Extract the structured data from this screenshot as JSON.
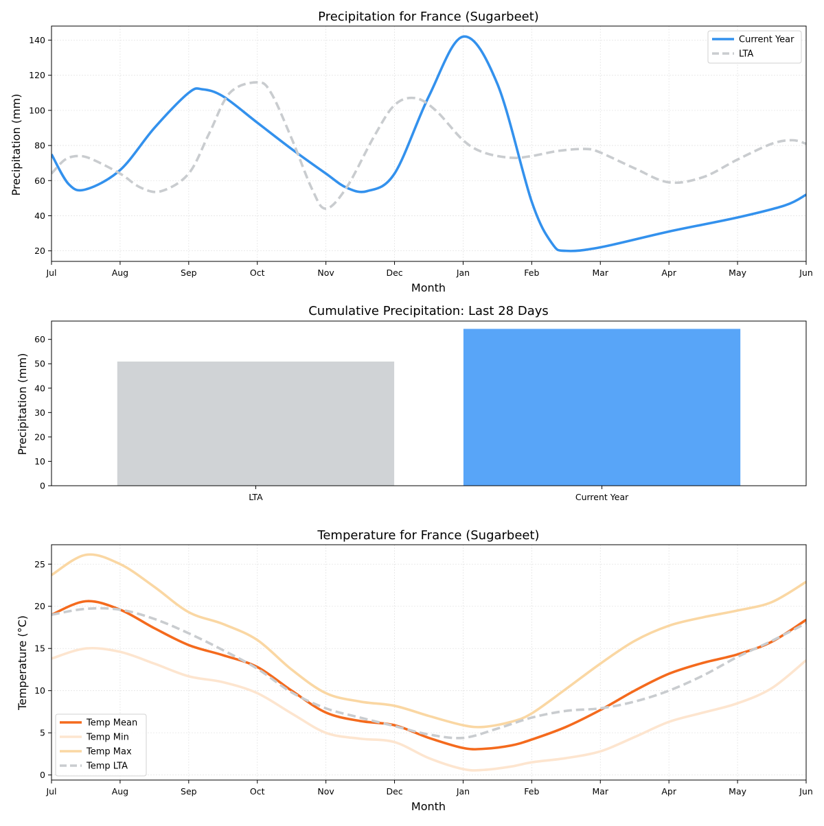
{
  "chart_data": [
    {
      "type": "line",
      "title": "Precipitation for France (Sugarbeet)",
      "xlabel": "Month",
      "ylabel": "Precipitation (mm)",
      "x_ticks": [
        "Jul",
        "Aug",
        "Sep",
        "Oct",
        "Nov",
        "Dec",
        "Jan",
        "Feb",
        "Mar",
        "Apr",
        "May",
        "Jun"
      ],
      "y_ticks": [
        20,
        40,
        60,
        80,
        100,
        120,
        140
      ],
      "ylim": [
        14,
        148
      ],
      "grid": true,
      "legend_position": "top-right",
      "series": [
        {
          "name": "Current Year",
          "color": "#3391ed",
          "style": "solid",
          "x": [
            0,
            0.25,
            0.5,
            1.0,
            1.5,
            2.0,
            2.2,
            2.5,
            3.0,
            3.5,
            4.0,
            4.3,
            4.6,
            5.0,
            5.5,
            6.0,
            6.5,
            7.0,
            7.3,
            7.5,
            8.0,
            9.0,
            10.0,
            10.7,
            11.0
          ],
          "values": [
            75,
            58,
            55,
            66,
            90,
            110,
            112,
            108,
            93,
            78,
            64,
            56,
            54,
            64,
            108,
            142,
            115,
            48,
            24,
            20,
            22,
            31,
            39,
            46,
            52
          ]
        },
        {
          "name": "LTA",
          "color": "#c9cccf",
          "style": "dashed",
          "x": [
            0,
            0.2,
            0.4,
            0.6,
            1.0,
            1.3,
            1.6,
            2.0,
            2.3,
            2.6,
            3.0,
            3.2,
            3.5,
            3.8,
            4.0,
            4.3,
            4.7,
            5.0,
            5.3,
            5.6,
            6.0,
            6.3,
            6.7,
            7.0,
            7.4,
            7.8,
            8.0,
            8.5,
            9.0,
            9.5,
            10.0,
            10.5,
            10.8,
            11.0
          ],
          "values": [
            64,
            72,
            74,
            72,
            64,
            56,
            54,
            64,
            87,
            110,
            116,
            110,
            84,
            55,
            44,
            56,
            85,
            103,
            107,
            100,
            83,
            76,
            73,
            74,
            77,
            78,
            76,
            67,
            59,
            62,
            72,
            81,
            83,
            81
          ]
        }
      ]
    },
    {
      "type": "bar",
      "title": "Cumulative Precipitation: Last 28 Days",
      "ylabel": "Precipitation (mm)",
      "categories": [
        "LTA",
        "Current Year"
      ],
      "values": [
        50.9,
        64.3
      ],
      "colors": [
        "#d0d3d6",
        "#58a5f8"
      ],
      "y_ticks": [
        0,
        10,
        20,
        30,
        40,
        50,
        60
      ],
      "ylim": [
        0,
        67.5
      ]
    },
    {
      "type": "line",
      "title": "Temperature for France (Sugarbeet)",
      "xlabel": "Month",
      "ylabel": "Temperature (°C)",
      "x_ticks": [
        "Jul",
        "Aug",
        "Sep",
        "Oct",
        "Nov",
        "Dec",
        "Jan",
        "Feb",
        "Mar",
        "Apr",
        "May",
        "Jun"
      ],
      "y_ticks": [
        0,
        5,
        10,
        15,
        20,
        25
      ],
      "ylim": [
        -0.6,
        27.3
      ],
      "grid": true,
      "legend_position": "bottom-left",
      "series": [
        {
          "name": "Temp Mean",
          "color": "#f46a1d",
          "style": "solid",
          "x": [
            0,
            0.5,
            1.0,
            1.5,
            2.0,
            2.5,
            3.0,
            3.5,
            4.0,
            4.5,
            5.0,
            5.5,
            6.0,
            6.3,
            6.7,
            7.0,
            7.5,
            8.0,
            8.5,
            9.0,
            9.5,
            10.0,
            10.5,
            11.0
          ],
          "values": [
            19,
            20.6,
            19.6,
            17.4,
            15.4,
            14.2,
            12.8,
            10.0,
            7.4,
            6.4,
            5.9,
            4.4,
            3.2,
            3.1,
            3.5,
            4.2,
            5.7,
            7.7,
            10.0,
            12.0,
            13.3,
            14.3,
            15.8,
            18.4
          ]
        },
        {
          "name": "Temp Min",
          "color": "#fde5cf",
          "style": "solid",
          "x": [
            0,
            0.5,
            1.0,
            1.5,
            2.0,
            2.5,
            3.0,
            3.5,
            4.0,
            4.5,
            5.0,
            5.5,
            6.0,
            6.3,
            6.7,
            7.0,
            7.5,
            8.0,
            8.5,
            9.0,
            9.5,
            10.0,
            10.5,
            11.0
          ],
          "values": [
            13.8,
            15.0,
            14.6,
            13.2,
            11.7,
            11.0,
            9.7,
            7.3,
            5.0,
            4.3,
            3.9,
            2.0,
            0.7,
            0.6,
            1.0,
            1.5,
            2.0,
            2.8,
            4.5,
            6.3,
            7.4,
            8.5,
            10.3,
            13.6
          ]
        },
        {
          "name": "Temp Max",
          "color": "#fad7a3",
          "style": "solid",
          "x": [
            0,
            0.5,
            1.0,
            1.5,
            2.0,
            2.5,
            3.0,
            3.5,
            4.0,
            4.5,
            5.0,
            5.5,
            6.0,
            6.3,
            6.7,
            7.0,
            7.5,
            8.0,
            8.5,
            9.0,
            9.5,
            10.0,
            10.5,
            11.0
          ],
          "values": [
            23.7,
            26.1,
            25.0,
            22.3,
            19.3,
            17.9,
            16.0,
            12.5,
            9.7,
            8.7,
            8.2,
            7.0,
            5.9,
            5.7,
            6.3,
            7.3,
            10.2,
            13.2,
            15.9,
            17.7,
            18.7,
            19.5,
            20.5,
            22.9
          ]
        },
        {
          "name": "Temp LTA",
          "color": "#c9cccf",
          "style": "dashed",
          "x": [
            0,
            0.5,
            1.0,
            1.5,
            2.0,
            2.5,
            3.0,
            3.5,
            4.0,
            4.5,
            5.0,
            5.5,
            6.0,
            6.5,
            7.0,
            7.5,
            8.0,
            8.5,
            9.0,
            9.5,
            10.0,
            10.5,
            11.0
          ],
          "values": [
            19,
            19.7,
            19.6,
            18.5,
            16.8,
            14.8,
            12.6,
            9.8,
            7.9,
            6.8,
            5.8,
            4.8,
            4.4,
            5.5,
            6.8,
            7.6,
            7.9,
            8.7,
            10.0,
            11.8,
            14.0,
            15.9,
            18.0
          ]
        }
      ]
    }
  ]
}
